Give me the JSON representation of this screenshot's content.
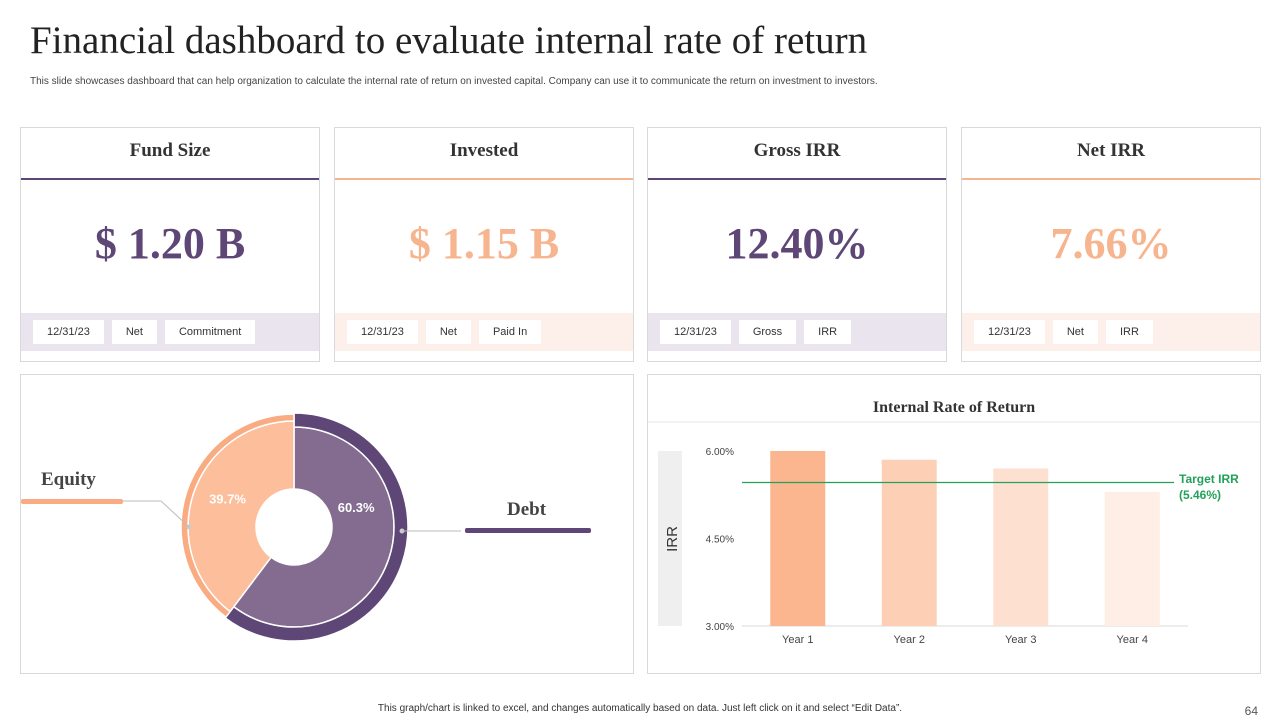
{
  "header": {
    "title": "Financial dashboard to evaluate internal rate of return",
    "subtitle": "This slide showcases dashboard that can help organization to calculate the internal rate of return on invested capital. Company can use it to communicate the return on investment to investors."
  },
  "kpis": [
    {
      "title": "Fund Size",
      "value": "$ 1.20 B",
      "tags": [
        "12/31/23",
        "Net",
        "Commitment"
      ],
      "value_color": "#5e4676",
      "line_color": "#5e4676",
      "band_color": "#e9e4ee"
    },
    {
      "title": "Invested",
      "value": "$ 1.15 B",
      "tags": [
        "12/31/23",
        "Net",
        "Paid In"
      ],
      "value_color": "#f7b58f",
      "line_color": "#f7b58f",
      "band_color": "#fdf0ea"
    },
    {
      "title": "Gross IRR",
      "value": "12.40%",
      "tags": [
        "12/31/23",
        "Gross",
        "IRR"
      ],
      "value_color": "#5e4676",
      "line_color": "#5e4676",
      "band_color": "#e9e4ee"
    },
    {
      "title": "Net IRR",
      "value": "7.66%",
      "tags": [
        "12/31/23",
        "Net",
        "IRR"
      ],
      "value_color": "#f7b58f",
      "line_color": "#f7b58f",
      "band_color": "#fdf0ea"
    }
  ],
  "chart_data": [
    {
      "type": "pie",
      "subtype": "donut",
      "labels": [
        "Equity",
        "Debt"
      ],
      "values": [
        39.7,
        60.3
      ],
      "data_labels": [
        "39.7%",
        "60.3%"
      ],
      "colors": [
        "#fcbe9b",
        "#836c8f"
      ],
      "ring_colors": [
        "#f9ab82",
        "#5e4676"
      ]
    },
    {
      "type": "bar",
      "title": "Internal Rate of Return",
      "ylabel": "IRR",
      "categories": [
        "Year 1",
        "Year 2",
        "Year 3",
        "Year 4"
      ],
      "values": [
        6.0,
        5.85,
        5.7,
        5.3
      ],
      "ylim": [
        3.0,
        6.0
      ],
      "yticks": [
        3.0,
        4.5,
        6.0
      ],
      "ytick_labels": [
        "3.00%",
        "4.50%",
        "6.00%"
      ],
      "bar_colors": [
        "#fbb58f",
        "#fdd0b5",
        "#fde0d0",
        "#feeee6"
      ],
      "target": {
        "value": 5.46,
        "label_line1": "Target IRR",
        "label_line2": "(5.46%)",
        "color": "#23a15a"
      },
      "grid": false
    }
  ],
  "footer": {
    "note": "This graph/chart is linked to excel, and changes automatically based on data. Just left click on it and select “Edit Data”.",
    "page": "64"
  }
}
